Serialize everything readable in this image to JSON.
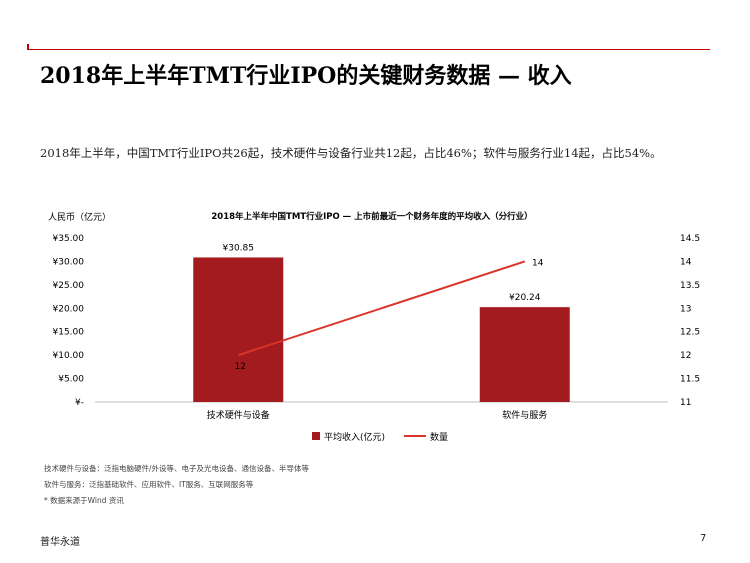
{
  "page": {
    "title": "2018年上半年TMT行业IPO的关键财务数据 — 收入",
    "summary": "2018年上半年，中国TMT行业IPO共26起，技术硬件与设备行业共12起，占比46%；软件与服务行业14起，占比54%。",
    "notes": [
      "技术硬件与设备：泛指电脑硬件/外设等、电子及光电设备、通信设备、半导体等",
      "软件与服务：泛指基础软件、应用软件、IT服务、互联网服务等",
      "* 数据来源于Wind 资讯"
    ],
    "footer_left": "普华永道",
    "page_number": "7"
  },
  "chart_data": {
    "type": "bar",
    "title": "2018年上半年中国TMT行业IPO — 上市前最近一个财务年度的平均收入（分行业）",
    "ylabel": "人民币（亿元）",
    "categories": [
      "技术硬件与设备",
      "软件与服务"
    ],
    "y_ticks": [
      "¥35.00",
      "¥30.00",
      "¥25.00",
      "¥20.00",
      "¥15.00",
      "¥10.00",
      "¥5.00",
      "¥-"
    ],
    "ylim": [
      0,
      35
    ],
    "y2_ticks": [
      "14.5",
      "14",
      "13.5",
      "13",
      "12.5",
      "12",
      "11.5",
      "11"
    ],
    "y2lim": [
      11,
      14.5
    ],
    "series": [
      {
        "name": "平均收入(亿元)",
        "type": "bar",
        "axis": "left",
        "values": [
          30.85,
          20.24
        ],
        "labels": [
          "¥30.85",
          "¥20.24"
        ],
        "color": "#a31a1f"
      },
      {
        "name": "数量",
        "type": "line",
        "axis": "right",
        "values": [
          12,
          14
        ],
        "labels": [
          "12",
          "14"
        ],
        "color": "#d9332b"
      }
    ],
    "legend_position": "bottom",
    "grid": false
  }
}
